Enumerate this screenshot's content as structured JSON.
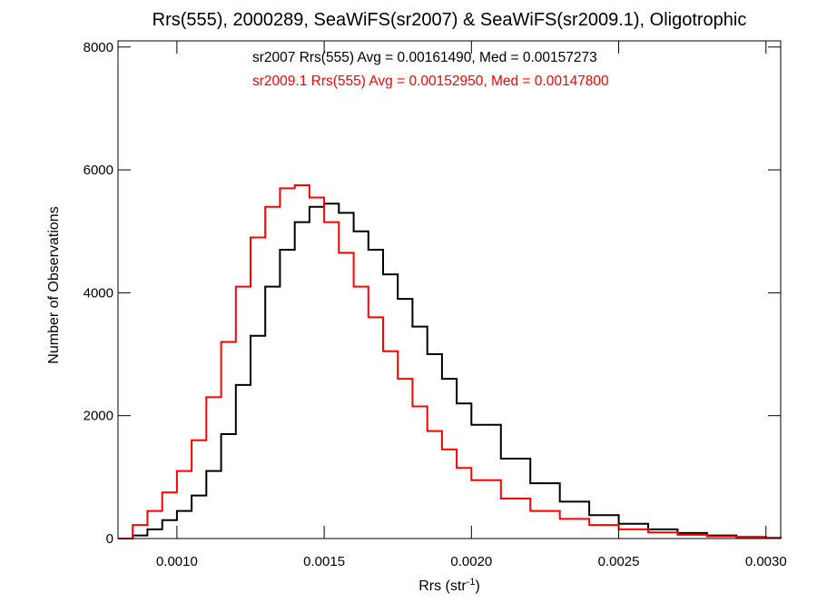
{
  "chart_data": {
    "type": "line",
    "title": "Rrs(555), 2000289, SeaWiFS(sr2007) & SeaWiFS(sr2009.1), Oligotrophic",
    "xlabel": "Rrs (str",
    "xlabel_sup": "-1",
    "xlabel_end": ")",
    "ylabel": "Number of Observations",
    "xlim": [
      0.0008,
      0.00305
    ],
    "ylim": [
      0,
      8100
    ],
    "xticks": [
      0.001,
      0.0015,
      0.002,
      0.0025,
      0.003
    ],
    "xtick_labels": [
      "0.0010",
      "0.0015",
      "0.0020",
      "0.0025",
      "0.0030"
    ],
    "yticks": [
      0,
      2000,
      4000,
      6000,
      8000
    ],
    "ytick_labels": [
      "0",
      "2000",
      "4000",
      "6000",
      "8000"
    ],
    "grid": false,
    "legend_placement": "top-center",
    "annotations": [
      {
        "text": "sr2007 Rrs(555) Avg = 0.00161490, Med = 0.00157273",
        "color": "#000000"
      },
      {
        "text": "sr2009.1 Rrs(555) Avg = 0.00152950, Med = 0.00147800",
        "color": "#ff0000"
      }
    ],
    "series": [
      {
        "name": "sr2007",
        "color": "#000000",
        "x": [
          0.0008,
          0.00085,
          0.0009,
          0.00095,
          0.001,
          0.00105,
          0.0011,
          0.00115,
          0.0012,
          0.00125,
          0.0013,
          0.00135,
          0.0014,
          0.00145,
          0.0015,
          0.00155,
          0.0016,
          0.00165,
          0.0017,
          0.00175,
          0.0018,
          0.00185,
          0.0019,
          0.00195,
          0.002,
          0.0021,
          0.0022,
          0.0023,
          0.0024,
          0.0025,
          0.0026,
          0.0027,
          0.0028,
          0.0029,
          0.003,
          0.00305
        ],
        "y": [
          0,
          50,
          150,
          300,
          450,
          700,
          1100,
          1700,
          2500,
          3300,
          4100,
          4700,
          5150,
          5400,
          5450,
          5300,
          5000,
          4700,
          4300,
          3900,
          3450,
          3000,
          2600,
          2200,
          1850,
          1300,
          900,
          600,
          380,
          240,
          150,
          90,
          50,
          25,
          10,
          5
        ]
      },
      {
        "name": "sr2009.1",
        "color": "#ff0000",
        "x": [
          0.0008,
          0.00085,
          0.0009,
          0.00095,
          0.001,
          0.00105,
          0.0011,
          0.00115,
          0.0012,
          0.00125,
          0.0013,
          0.00135,
          0.0014,
          0.00145,
          0.0015,
          0.00155,
          0.0016,
          0.00165,
          0.0017,
          0.00175,
          0.0018,
          0.00185,
          0.0019,
          0.00195,
          0.002,
          0.0021,
          0.0022,
          0.0023,
          0.0024,
          0.0025,
          0.0026,
          0.0027,
          0.0028,
          0.0029,
          0.003,
          0.00305
        ],
        "y": [
          0,
          220,
          450,
          750,
          1100,
          1600,
          2300,
          3200,
          4100,
          4900,
          5400,
          5700,
          5750,
          5550,
          5150,
          4650,
          4100,
          3600,
          3050,
          2600,
          2150,
          1750,
          1450,
          1150,
          950,
          650,
          450,
          320,
          220,
          150,
          100,
          60,
          35,
          20,
          10,
          5
        ]
      }
    ]
  }
}
